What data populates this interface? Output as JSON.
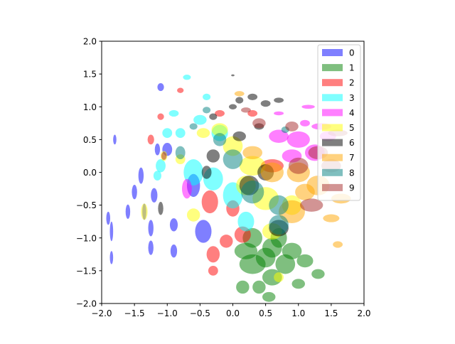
{
  "chart_data": {
    "type": "ellipse",
    "xlim": [
      -2,
      2
    ],
    "ylim": [
      -2,
      2
    ],
    "xticks": [
      {
        "value": -2,
        "label": "−2.0"
      },
      {
        "value": -1.5,
        "label": "−1.5"
      },
      {
        "value": -1,
        "label": "−1.0"
      },
      {
        "value": -0.5,
        "label": "−0.5"
      },
      {
        "value": 0,
        "label": "0.0"
      },
      {
        "value": 0.5,
        "label": "0.5"
      },
      {
        "value": 1,
        "label": "1.0"
      },
      {
        "value": 1.5,
        "label": "1.5"
      },
      {
        "value": 2,
        "label": "2.0"
      }
    ],
    "yticks": [
      {
        "value": -2,
        "label": "−2.0"
      },
      {
        "value": -1.5,
        "label": "−1.5"
      },
      {
        "value": -1,
        "label": "−1.0"
      },
      {
        "value": -0.5,
        "label": "−0.5"
      },
      {
        "value": 0,
        "label": "0.0"
      },
      {
        "value": 0.5,
        "label": "0.5"
      },
      {
        "value": 1,
        "label": "1.0"
      },
      {
        "value": 1.5,
        "label": "1.5"
      },
      {
        "value": 2,
        "label": "2.0"
      }
    ],
    "legend": "upper right",
    "alpha": 0.5,
    "series": [
      {
        "name": "0",
        "color": "#0000ff",
        "x": [
          -1.9,
          -1.85,
          -1.6,
          -1.5,
          -1.35,
          -1.25,
          -1.2,
          -1.4,
          -1.15,
          -1.0,
          -0.9,
          -0.6,
          -0.45,
          -1.1,
          -1.25,
          -1.85,
          -1.8,
          -0.9
        ],
        "y": [
          -0.7,
          -1.3,
          -0.6,
          -0.3,
          -0.6,
          -0.85,
          -0.35,
          -0.05,
          0.35,
          0.35,
          -0.8,
          -0.2,
          -0.9,
          1.3,
          -1.15,
          -0.9,
          0.5,
          -1.2
        ],
        "width": [
          0.06,
          0.05,
          0.07,
          0.08,
          0.06,
          0.08,
          0.1,
          0.08,
          0.08,
          0.15,
          0.12,
          0.2,
          0.25,
          0.1,
          0.08,
          0.05,
          0.05,
          0.1
        ],
        "height": [
          0.2,
          0.2,
          0.22,
          0.22,
          0.25,
          0.25,
          0.22,
          0.25,
          0.18,
          0.2,
          0.2,
          0.35,
          0.35,
          0.12,
          0.22,
          0.3,
          0.15,
          0.2
        ]
      },
      {
        "name": "1",
        "color": "#008000",
        "x": [
          0.2,
          0.3,
          0.5,
          0.6,
          0.8,
          0.4,
          0.55,
          0.9,
          1.1,
          1.3,
          0.7,
          0.3,
          1.0,
          0.15,
          0.6
        ],
        "y": [
          -1.2,
          -1.4,
          -1.3,
          -1.6,
          -1.4,
          -1.75,
          -1.9,
          -1.2,
          -1.35,
          -1.55,
          -1.0,
          -1.0,
          -1.7,
          -1.75,
          -1.15
        ],
        "width": [
          0.35,
          0.4,
          0.3,
          0.3,
          0.3,
          0.2,
          0.2,
          0.3,
          0.25,
          0.2,
          0.25,
          0.3,
          0.2,
          0.2,
          0.3
        ],
        "height": [
          0.25,
          0.3,
          0.3,
          0.25,
          0.3,
          0.2,
          0.15,
          0.25,
          0.2,
          0.15,
          0.3,
          0.3,
          0.15,
          0.2,
          0.3
        ]
      },
      {
        "name": "2",
        "color": "#ff0000",
        "x": [
          -0.35,
          -0.3,
          -0.1,
          0.0,
          -0.3,
          0.15,
          -1.25,
          -1.1,
          -0.2,
          0.3,
          0.6,
          -0.8
        ],
        "y": [
          -0.45,
          -1.5,
          -1.05,
          -0.55,
          -1.25,
          -0.95,
          0.5,
          0.85,
          0.9,
          0.9,
          0.1,
          1.25
        ],
        "width": [
          0.25,
          0.15,
          0.2,
          0.2,
          0.2,
          0.25,
          0.1,
          0.1,
          0.15,
          0.15,
          0.35,
          0.1
        ],
        "height": [
          0.35,
          0.15,
          0.2,
          0.25,
          0.25,
          0.25,
          0.15,
          0.1,
          0.1,
          0.1,
          0.2,
          0.08
        ]
      },
      {
        "name": "3",
        "color": "#00ffff",
        "x": [
          -0.5,
          -0.9,
          -0.8,
          -0.6,
          -0.3,
          0.0,
          0.2,
          -1.1,
          -0.7,
          -0.4,
          -0.2,
          -1.0,
          -1.15
        ],
        "y": [
          0.8,
          0.9,
          0.6,
          0.0,
          -0.1,
          -0.35,
          -0.75,
          0.1,
          1.45,
          1.15,
          0.6,
          0.6,
          -0.05
        ],
        "width": [
          0.2,
          0.15,
          0.15,
          0.3,
          0.3,
          0.3,
          0.25,
          0.15,
          0.12,
          0.12,
          0.25,
          0.15,
          0.12
        ],
        "height": [
          0.15,
          0.1,
          0.15,
          0.4,
          0.35,
          0.4,
          0.3,
          0.2,
          0.08,
          0.1,
          0.25,
          0.15,
          0.15
        ]
      },
      {
        "name": "4",
        "color": "#ff00ff",
        "x": [
          0.7,
          1.0,
          1.25,
          1.45,
          0.9,
          1.1,
          0.7,
          1.15,
          -0.7,
          1.35
        ],
        "y": [
          0.55,
          0.5,
          0.3,
          0.55,
          0.25,
          0.75,
          0.9,
          1.0,
          -0.25,
          0.7
        ],
        "width": [
          0.3,
          0.35,
          0.3,
          0.25,
          0.3,
          0.15,
          0.15,
          0.2,
          0.15,
          0.3
        ],
        "height": [
          0.2,
          0.25,
          0.25,
          0.15,
          0.2,
          0.1,
          0.06,
          0.06,
          0.3,
          0.1
        ]
      },
      {
        "name": "5",
        "color": "#ffff00",
        "x": [
          -1.35,
          -0.2,
          -0.45,
          0.3,
          0.5,
          0.2,
          -0.6,
          0.9,
          -1.05,
          0.0,
          0.6,
          -0.8,
          0.7
        ],
        "y": [
          -0.6,
          0.65,
          0.6,
          0.1,
          -0.4,
          -0.2,
          -0.65,
          -0.5,
          0.25,
          0.4,
          -0.9,
          0.2,
          -1.6
        ],
        "width": [
          0.1,
          0.25,
          0.2,
          0.4,
          0.4,
          0.3,
          0.2,
          0.3,
          0.1,
          0.3,
          0.3,
          0.15,
          0.15
        ],
        "height": [
          0.25,
          0.2,
          0.15,
          0.3,
          0.35,
          0.3,
          0.2,
          0.3,
          0.15,
          0.3,
          0.25,
          0.15,
          0.15
        ]
      },
      {
        "name": "6",
        "color": "#000000",
        "x": [
          0.0,
          0.1,
          0.3,
          0.5,
          0.7,
          -0.3,
          0.1,
          -0.3,
          -0.4,
          0.25,
          0.5,
          -1.1,
          0.7,
          0.0,
          0.4
        ],
        "y": [
          1.0,
          1.1,
          1.15,
          1.05,
          1.1,
          0.85,
          0.55,
          0.25,
          0.0,
          -0.2,
          0.0,
          -0.55,
          -0.85,
          1.48,
          0.7
        ],
        "width": [
          0.12,
          0.12,
          0.15,
          0.15,
          0.15,
          0.12,
          0.2,
          0.2,
          0.15,
          0.3,
          0.25,
          0.08,
          0.3,
          0.05,
          0.15
        ],
        "height": [
          0.08,
          0.1,
          0.1,
          0.1,
          0.08,
          0.1,
          0.15,
          0.2,
          0.2,
          0.3,
          0.25,
          0.2,
          0.25,
          0.03,
          0.1
        ]
      },
      {
        "name": "7",
        "color": "#ffa500",
        "x": [
          1.0,
          1.3,
          1.65,
          0.9,
          1.5,
          1.6,
          0.6,
          0.3,
          0.1,
          1.1
        ],
        "y": [
          0.0,
          -0.2,
          -0.4,
          -0.6,
          -0.7,
          -1.1,
          0.0,
          0.3,
          1.2,
          -0.3
        ],
        "width": [
          0.35,
          0.35,
          0.3,
          0.4,
          0.25,
          0.15,
          0.35,
          0.3,
          0.15,
          0.3
        ],
        "height": [
          0.3,
          0.3,
          0.15,
          0.35,
          0.12,
          0.1,
          0.3,
          0.2,
          0.08,
          0.25
        ]
      },
      {
        "name": "8",
        "color": "#008080",
        "x": [
          0.3,
          0.7,
          0.0,
          -0.2,
          -0.8,
          -0.6,
          0.7,
          -0.4,
          0.8
        ],
        "y": [
          -0.3,
          -0.5,
          0.2,
          0.5,
          0.3,
          0.7,
          -0.8,
          0.95,
          0.65
        ],
        "width": [
          0.35,
          0.3,
          0.3,
          0.2,
          0.15,
          0.12,
          0.3,
          0.12,
          0.12
        ],
        "height": [
          0.35,
          0.3,
          0.3,
          0.2,
          0.2,
          0.1,
          0.3,
          0.1,
          0.1
        ]
      },
      {
        "name": "9",
        "color": "#a52a2a",
        "x": [
          1.3,
          1.6,
          1.2,
          1.0,
          0.4,
          0.2,
          -1.05,
          0.9,
          1.5
        ],
        "y": [
          0.3,
          0.6,
          -0.5,
          0.1,
          0.75,
          0.95,
          0.25,
          0.7,
          0.1
        ],
        "width": [
          0.3,
          0.3,
          0.35,
          0.3,
          0.2,
          0.15,
          0.08,
          0.2,
          0.3
        ],
        "height": [
          0.2,
          0.1,
          0.2,
          0.25,
          0.15,
          0.08,
          0.12,
          0.15,
          0.2
        ]
      }
    ]
  }
}
